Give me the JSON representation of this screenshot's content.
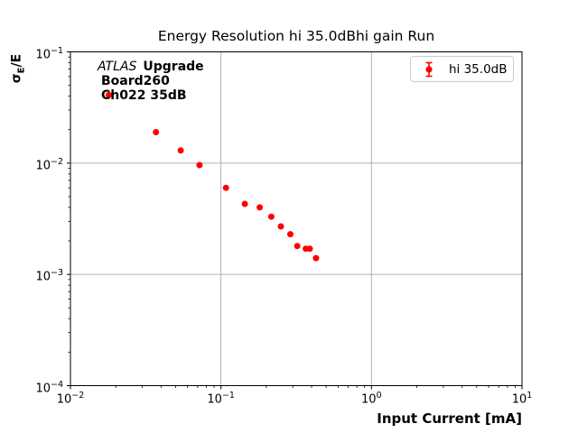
{
  "figure": {
    "title": "Energy Resolution hi 35.0dBhi gain Run",
    "background": "#ffffff"
  },
  "annotation": {
    "atlas": "ATLAS",
    "upgrade": "Upgrade",
    "line2": "Board260",
    "line3": "Ch022 35dB"
  },
  "legend": {
    "label": "hi 35.0dB",
    "marker": "errorbar-point",
    "marker_color": "#ff0000",
    "border_color": "#cccccc"
  },
  "axes": {
    "xlabel": "Input Current [mA]",
    "ylabel_sigma": "σ",
    "ylabel_sub": "E",
    "ylabel_rest": "/E",
    "tick_base": "10",
    "x_tick_exponents": [
      "−2",
      "−1",
      "0",
      "1"
    ],
    "y_tick_exponents": [
      "−1",
      "−2",
      "−3",
      "−4"
    ],
    "grid_color": "#b0b0b0",
    "spine_color": "#000000"
  },
  "chart_data": {
    "type": "scatter",
    "title": "Energy Resolution hi 35.0dBhi gain Run",
    "xlabel": "Input Current [mA]",
    "ylabel": "σE/E",
    "xscale": "log",
    "yscale": "log",
    "xlim": [
      0.01,
      10
    ],
    "ylim": [
      0.0001,
      0.1
    ],
    "grid": true,
    "legend_position": "upper right",
    "series": [
      {
        "name": "hi 35.0dB",
        "color": "#ff0000",
        "marker": "circle-with-errorbar",
        "x": [
          0.018,
          0.037,
          0.054,
          0.072,
          0.108,
          0.144,
          0.181,
          0.216,
          0.25,
          0.289,
          0.321,
          0.366,
          0.389,
          0.428
        ],
        "y": [
          0.041,
          0.019,
          0.013,
          0.0096,
          0.006,
          0.0043,
          0.004,
          0.0033,
          0.0027,
          0.0023,
          0.0018,
          0.0017,
          0.0017,
          0.0014
        ]
      }
    ]
  }
}
